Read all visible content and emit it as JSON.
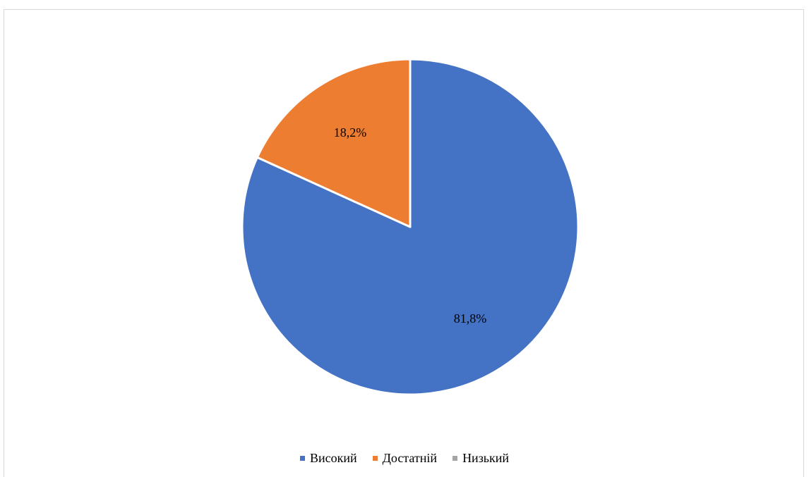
{
  "chart_data": {
    "type": "pie",
    "title": "",
    "legend_position": "bottom",
    "slices": [
      {
        "name": "Високий",
        "value": 81.8,
        "label": "81,8%",
        "color": "#4472C4"
      },
      {
        "name": "Достатній",
        "value": 18.2,
        "label": "18,2%",
        "color": "#ED7D31"
      },
      {
        "name": "Низький",
        "value": 0,
        "label": "",
        "color": "#A5A5A5"
      }
    ]
  }
}
